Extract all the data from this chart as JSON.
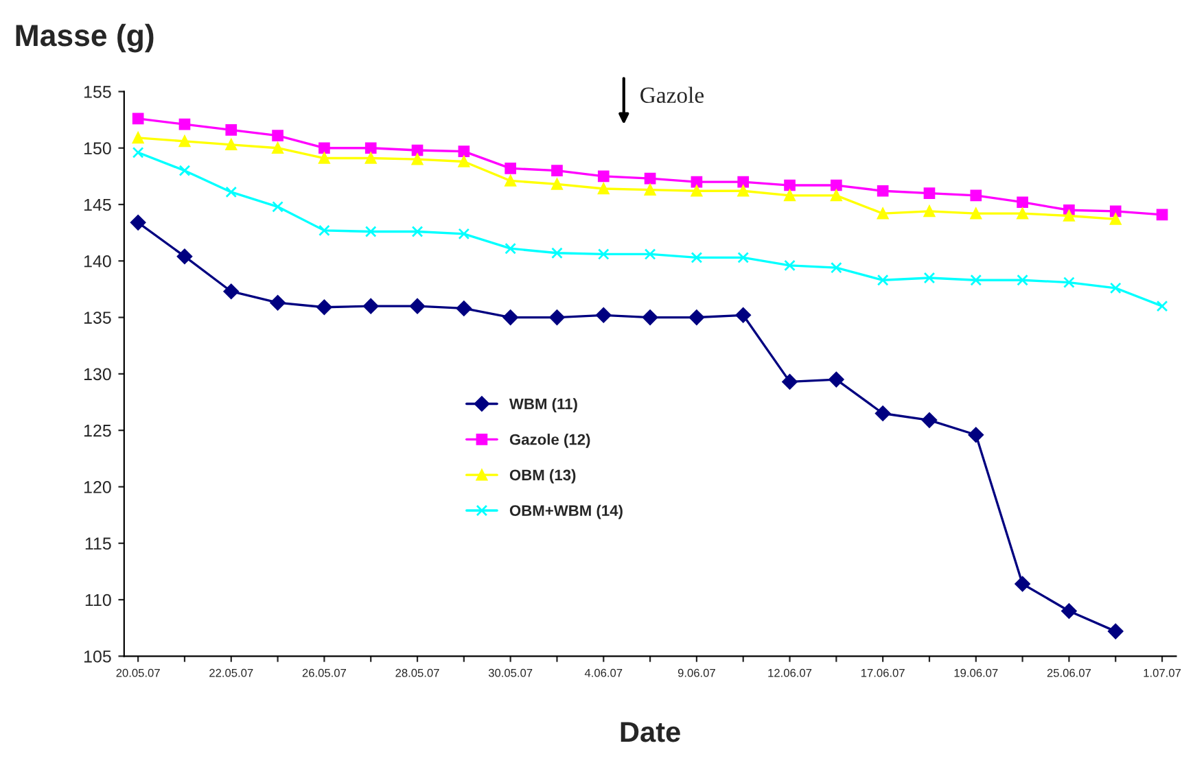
{
  "chart_data": {
    "type": "line",
    "title": "Masse (g)",
    "xlabel": "Date",
    "categories": [
      "20.05.07",
      null,
      "22.05.07",
      null,
      "26.05.07",
      null,
      "28.05.07",
      null,
      "30.05.07",
      null,
      "4.06.07",
      null,
      "9.06.07",
      null,
      "12.06.07",
      null,
      "17.06.07",
      null,
      "19.06.07",
      null,
      "25.06.07",
      null,
      "1.07.07"
    ],
    "series": [
      {
        "name": "WBM (11)",
        "color": "#000080",
        "marker": "diamond",
        "values": [
          143.4,
          140.4,
          137.3,
          136.3,
          135.9,
          136.0,
          136.0,
          135.8,
          135.0,
          135.0,
          135.2,
          135.0,
          135.0,
          135.2,
          129.3,
          129.5,
          126.5,
          125.9,
          124.6,
          111.4,
          109.0,
          107.2,
          null
        ]
      },
      {
        "name": "Gazole (12)",
        "color": "#ff00ff",
        "marker": "square",
        "values": [
          152.6,
          152.1,
          151.6,
          151.1,
          150.0,
          150.0,
          149.8,
          149.7,
          148.2,
          148.0,
          147.5,
          147.3,
          147.0,
          147.0,
          146.7,
          146.7,
          146.2,
          146.0,
          145.8,
          145.2,
          144.5,
          144.4,
          144.1
        ]
      },
      {
        "name": "OBM (13)",
        "color": "#ffff00",
        "marker": "triangle",
        "values": [
          150.9,
          150.6,
          150.3,
          150.0,
          149.1,
          149.1,
          149.0,
          148.8,
          147.1,
          146.8,
          146.4,
          146.3,
          146.2,
          146.2,
          145.8,
          145.8,
          144.2,
          144.4,
          144.2,
          144.2,
          144.0,
          143.7,
          null
        ]
      },
      {
        "name": "OBM+WBM (14)",
        "color": "#00ffff",
        "marker": "cross",
        "values": [
          149.6,
          148.0,
          146.1,
          144.8,
          142.7,
          142.6,
          142.6,
          142.4,
          141.1,
          140.7,
          140.6,
          140.6,
          140.3,
          140.3,
          139.6,
          139.4,
          138.3,
          138.5,
          138.3,
          138.3,
          138.1,
          137.6,
          136.0
        ]
      }
    ],
    "annotations": [
      "Gazole"
    ],
    "ylim": [
      105,
      155
    ],
    "yticks": [
      105,
      110,
      115,
      120,
      125,
      130,
      135,
      140,
      145,
      150,
      155
    ],
    "grid": false,
    "legend": "center"
  }
}
